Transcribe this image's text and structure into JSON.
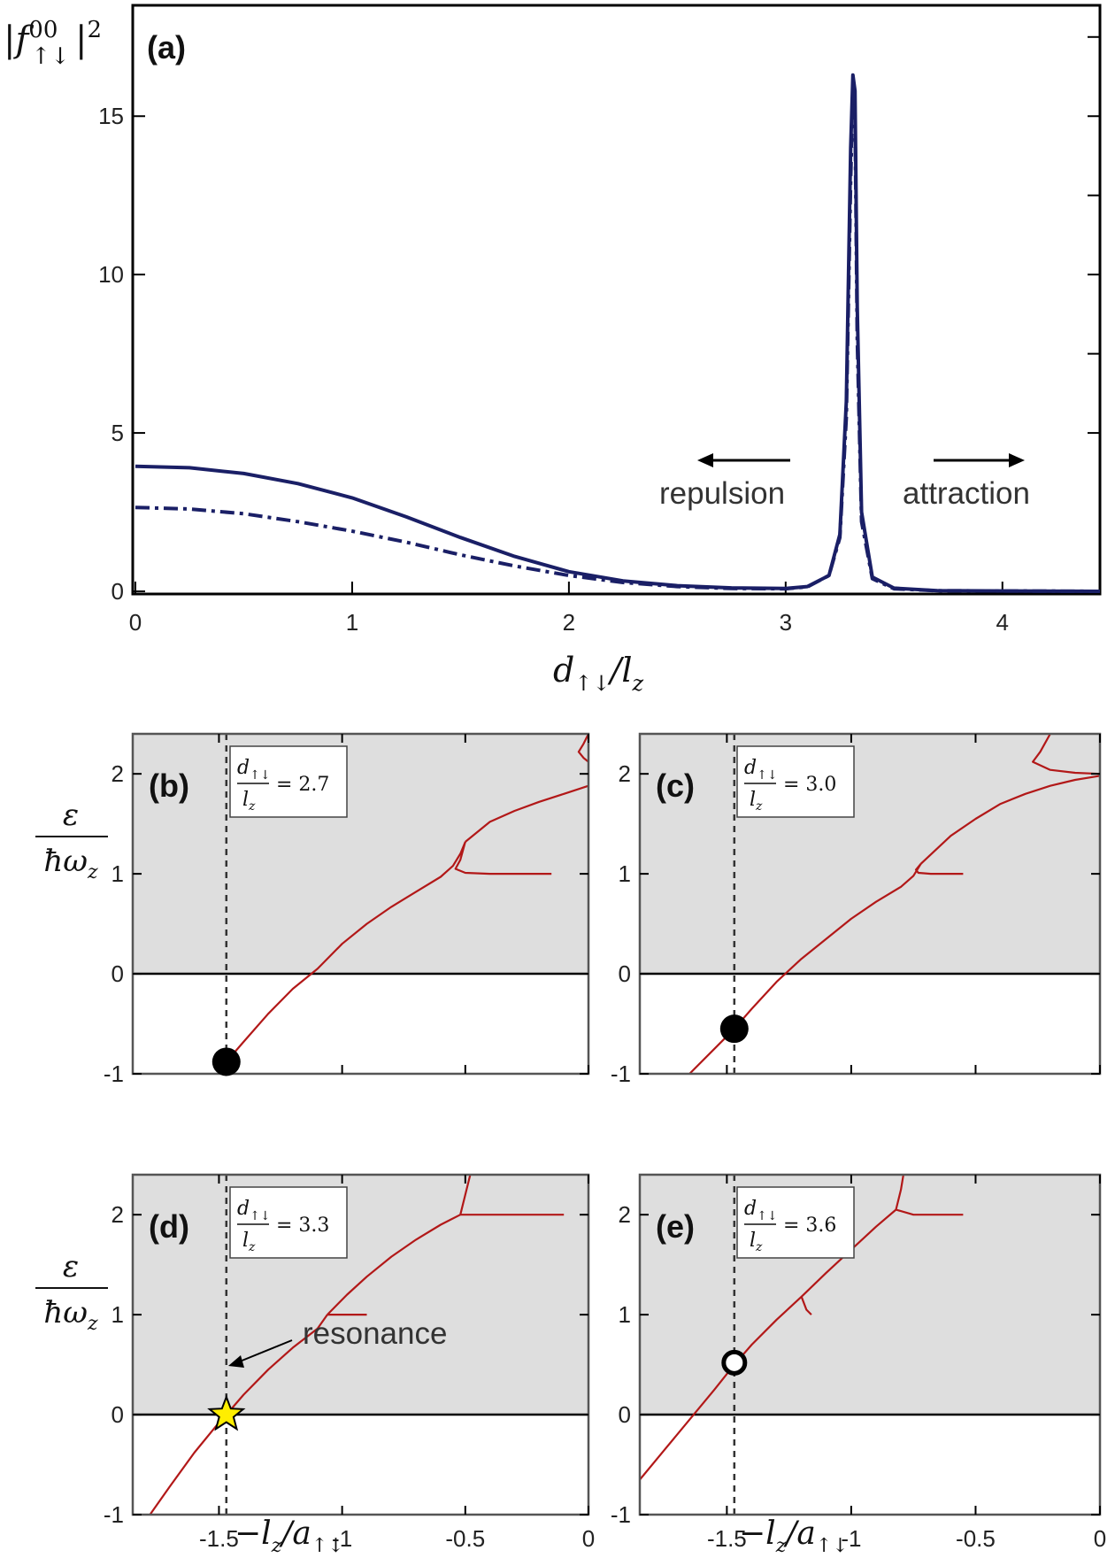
{
  "chart_data": [
    {
      "type": "line",
      "panel": "(a)",
      "xlabel": "d↑↓/lz",
      "ylabel": "|f00↑↓|2",
      "xlim": [
        0,
        4.45
      ],
      "ylim": [
        0,
        18.5
      ],
      "xticks": [
        0,
        1,
        2,
        3,
        4
      ],
      "yticks": [
        0,
        5,
        10,
        15
      ],
      "colors": {
        "line": "#1a1f66"
      },
      "series": [
        {
          "style": "solid",
          "x": [
            0,
            0.25,
            0.5,
            0.75,
            1.0,
            1.25,
            1.5,
            1.75,
            2.0,
            2.25,
            2.5,
            2.75,
            3.0,
            3.1,
            3.2,
            3.25,
            3.28,
            3.3,
            3.31,
            3.32,
            3.33,
            3.35,
            3.4,
            3.5,
            3.7,
            4.45
          ],
          "y": [
            3.95,
            3.9,
            3.72,
            3.4,
            2.95,
            2.35,
            1.7,
            1.1,
            0.62,
            0.33,
            0.18,
            0.11,
            0.09,
            0.15,
            0.5,
            1.8,
            6.0,
            14.0,
            16.3,
            15.8,
            9.0,
            2.5,
            0.45,
            0.1,
            0.02,
            0.0
          ]
        },
        {
          "style": "dash-dot",
          "x": [
            0,
            0.25,
            0.5,
            0.75,
            1.0,
            1.25,
            1.5,
            1.75,
            2.0,
            2.25,
            2.5,
            2.75,
            3.0,
            3.1,
            3.2,
            3.25,
            3.28,
            3.3,
            3.31,
            3.32,
            3.33,
            3.35,
            3.4,
            3.5,
            3.7,
            4.45
          ],
          "y": [
            2.65,
            2.6,
            2.45,
            2.2,
            1.9,
            1.55,
            1.15,
            0.8,
            0.5,
            0.28,
            0.15,
            0.09,
            0.08,
            0.14,
            0.5,
            1.7,
            5.5,
            13.0,
            15.8,
            15.0,
            8.0,
            2.2,
            0.4,
            0.08,
            0.02,
            0.0
          ]
        }
      ],
      "annotations": {
        "repulsion": "repulsion",
        "attraction": "attraction"
      }
    },
    {
      "type": "line",
      "panel": "(b)",
      "box_label": "= 2.7",
      "xlim": [
        -1.85,
        0
      ],
      "ylim": [
        -1,
        2.4
      ],
      "xticks": [
        -1.5,
        -1,
        -0.5,
        0
      ],
      "yticks": [
        -1,
        0,
        1,
        2
      ],
      "marker": {
        "x": -1.47,
        "y": -0.88,
        "style": "filled-circle"
      },
      "vline": -1.47,
      "colors": {
        "curve": "#b21818",
        "shade": "#dedede"
      },
      "branches": [
        {
          "x": [
            -1.47,
            -1.4,
            -1.3,
            -1.2,
            -1.1,
            -1.0,
            -0.9,
            -0.8,
            -0.7,
            -0.6,
            -0.55,
            -0.52,
            -0.5
          ],
          "y": [
            -0.88,
            -0.68,
            -0.4,
            -0.15,
            0.05,
            0.3,
            0.5,
            0.67,
            0.82,
            0.97,
            1.08,
            1.2,
            1.32
          ]
        },
        {
          "x": [
            -0.5,
            -0.52,
            -0.54,
            -0.5,
            -0.4,
            -0.3,
            -0.15
          ],
          "y": [
            1.32,
            1.14,
            1.05,
            1.01,
            1.0,
            1.0,
            1.0
          ]
        },
        {
          "x": [
            -0.5,
            -0.4,
            -0.3,
            -0.2,
            -0.1,
            0.0
          ],
          "y": [
            1.32,
            1.52,
            1.63,
            1.72,
            1.8,
            1.88
          ]
        },
        {
          "x": [
            0.0,
            -0.02,
            -0.04,
            -0.02,
            0.0
          ],
          "y": [
            2.4,
            2.3,
            2.22,
            2.16,
            2.12
          ]
        }
      ]
    },
    {
      "type": "line",
      "panel": "(c)",
      "box_label": "= 3.0",
      "xlim": [
        -1.85,
        0
      ],
      "ylim": [
        -1,
        2.4
      ],
      "xticks": [
        -1.5,
        -1,
        -0.5,
        0
      ],
      "yticks": [
        -1,
        0,
        1,
        2
      ],
      "marker": {
        "x": -1.47,
        "y": -0.55,
        "style": "filled-circle"
      },
      "vline": -1.47,
      "colors": {
        "curve": "#b21818",
        "shade": "#dedede"
      },
      "branches": [
        {
          "x": [
            -1.65,
            -1.55,
            -1.47,
            -1.4,
            -1.3,
            -1.2,
            -1.1,
            -1.0,
            -0.9,
            -0.8,
            -0.75,
            -0.72
          ],
          "y": [
            -1.0,
            -0.75,
            -0.55,
            -0.35,
            -0.08,
            0.15,
            0.35,
            0.55,
            0.72,
            0.87,
            0.98,
            1.1
          ]
        },
        {
          "x": [
            -0.72,
            -0.74,
            -0.73,
            -0.68,
            -0.6,
            -0.55
          ],
          "y": [
            1.1,
            1.04,
            1.01,
            1.0,
            1.0,
            1.0
          ]
        },
        {
          "x": [
            -0.72,
            -0.6,
            -0.5,
            -0.4,
            -0.3,
            -0.2,
            -0.1,
            0.0
          ],
          "y": [
            1.1,
            1.38,
            1.55,
            1.7,
            1.8,
            1.88,
            1.94,
            1.98
          ]
        },
        {
          "x": [
            -0.2,
            -0.24,
            -0.27,
            -0.2,
            -0.1,
            0.0
          ],
          "y": [
            2.4,
            2.22,
            2.12,
            2.04,
            2.01,
            2.0
          ]
        }
      ]
    },
    {
      "type": "line",
      "panel": "(d)",
      "box_label": "= 3.3",
      "xlim": [
        -1.85,
        0
      ],
      "ylim": [
        -1,
        2.4
      ],
      "xticks": [
        -1.5,
        -1,
        -0.5,
        0
      ],
      "yticks": [
        -1,
        0,
        1,
        2
      ],
      "marker": {
        "x": -1.47,
        "y": 0.0,
        "style": "star"
      },
      "vline": -1.47,
      "annotation": "resonance",
      "colors": {
        "curve": "#b21818",
        "shade": "#dedede",
        "star": "#ffee00"
      },
      "branches": [
        {
          "x": [
            -1.78,
            -1.7,
            -1.6,
            -1.5,
            -1.47,
            -1.4,
            -1.3,
            -1.2,
            -1.1,
            -1.06
          ],
          "y": [
            -1.0,
            -0.72,
            -0.38,
            -0.08,
            0.0,
            0.2,
            0.45,
            0.67,
            0.86,
            1.0
          ]
        },
        {
          "x": [
            -1.06,
            -1.0,
            -0.95,
            -0.9
          ],
          "y": [
            1.0,
            1.0,
            1.0,
            1.0
          ]
        },
        {
          "x": [
            -1.06,
            -0.98,
            -0.9,
            -0.8,
            -0.7,
            -0.6,
            -0.52
          ],
          "y": [
            1.0,
            1.2,
            1.38,
            1.58,
            1.75,
            1.9,
            2.0
          ]
        },
        {
          "x": [
            -0.52,
            -0.45,
            -0.35,
            -0.25,
            -0.1
          ],
          "y": [
            2.0,
            2.0,
            2.0,
            2.0,
            2.0
          ]
        },
        {
          "x": [
            -0.52,
            -0.5,
            -0.48
          ],
          "y": [
            2.0,
            2.2,
            2.4
          ]
        }
      ]
    },
    {
      "type": "line",
      "panel": "(e)",
      "box_label": "= 3.6",
      "xlim": [
        -1.85,
        0
      ],
      "ylim": [
        -1,
        2.4
      ],
      "xticks": [
        -1.5,
        -1,
        -0.5,
        0
      ],
      "yticks": [
        -1,
        0,
        1,
        2
      ],
      "marker": {
        "x": -1.47,
        "y": 0.52,
        "style": "open-circle"
      },
      "vline": -1.47,
      "colors": {
        "curve": "#b21818",
        "shade": "#dedede"
      },
      "branches": [
        {
          "x": [
            -1.85,
            -1.75,
            -1.65,
            -1.55,
            -1.47,
            -1.4,
            -1.3,
            -1.2,
            -1.1,
            -1.0,
            -0.9,
            -0.82
          ],
          "y": [
            -0.65,
            -0.35,
            -0.05,
            0.25,
            0.5,
            0.7,
            0.95,
            1.18,
            1.42,
            1.65,
            1.88,
            2.05
          ]
        },
        {
          "x": [
            -1.2,
            -1.18,
            -1.16
          ],
          "y": [
            1.18,
            1.05,
            1.0
          ]
        },
        {
          "x": [
            -0.82,
            -0.75,
            -0.65,
            -0.55
          ],
          "y": [
            2.05,
            2.0,
            2.0,
            2.0
          ]
        },
        {
          "x": [
            -0.82,
            -0.8,
            -0.79
          ],
          "y": [
            2.05,
            2.25,
            2.4
          ]
        }
      ]
    }
  ]
}
